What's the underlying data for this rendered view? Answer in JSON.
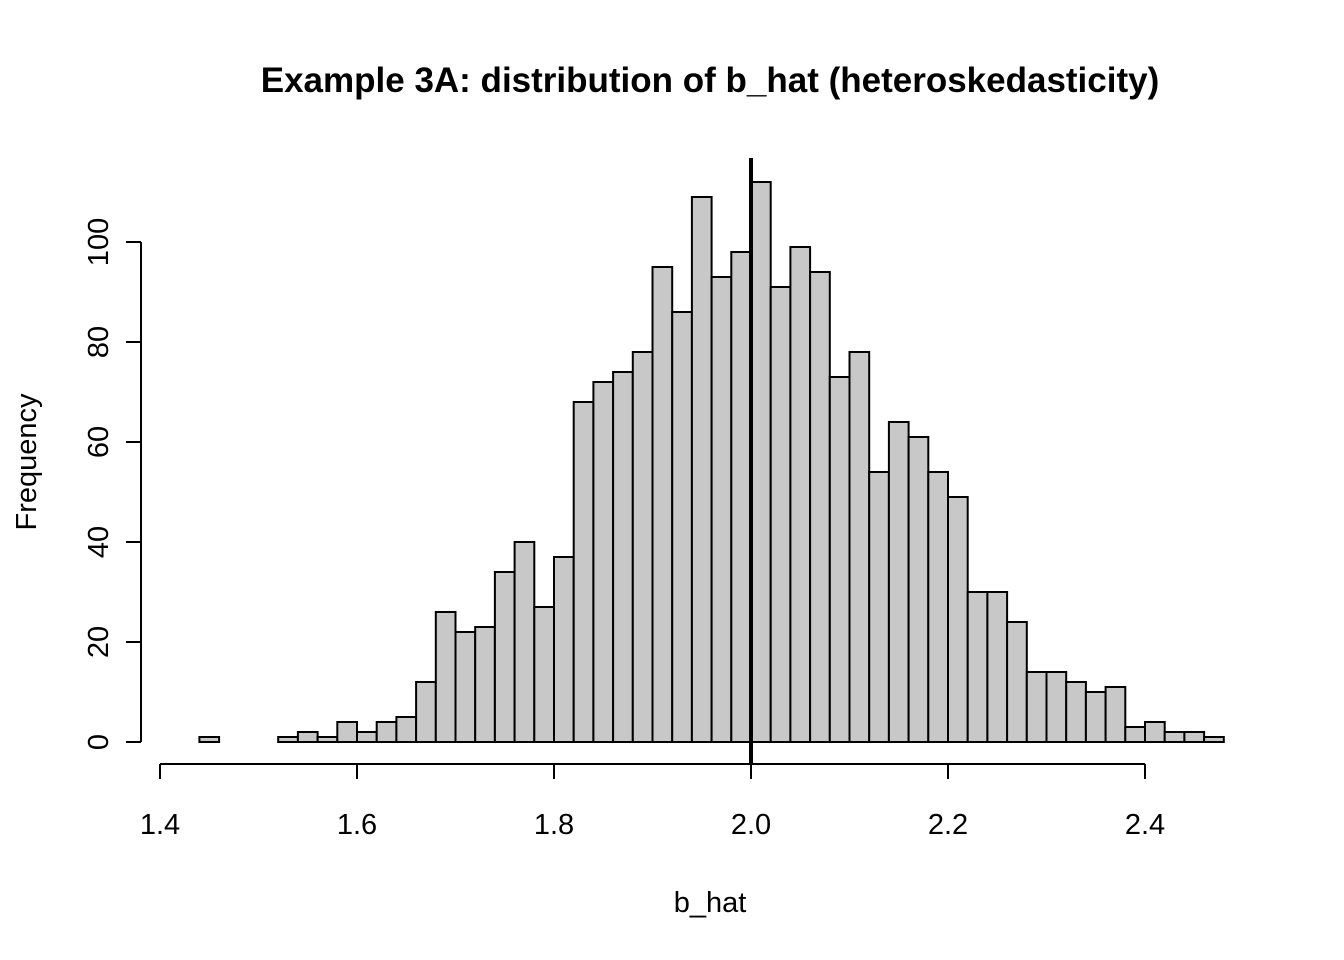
{
  "chart_data": {
    "type": "bar",
    "title": "Example 3A: distribution of b_hat (heteroskedasticity)",
    "xlabel": "b_hat",
    "ylabel": "Frequency",
    "bin_width": 0.02,
    "bin_start": 1.44,
    "values": [
      1,
      0,
      0,
      0,
      1,
      2,
      1,
      4,
      2,
      4,
      5,
      12,
      26,
      22,
      23,
      34,
      40,
      27,
      37,
      68,
      72,
      74,
      78,
      95,
      86,
      109,
      93,
      98,
      112,
      91,
      99,
      94,
      73,
      78,
      54,
      64,
      61,
      54,
      49,
      30,
      30,
      24,
      14,
      14,
      12,
      10,
      11,
      3,
      4,
      2,
      2,
      1
    ],
    "xlim": [
      1.4,
      2.48
    ],
    "ylim": [
      0,
      112
    ],
    "xticks": [
      1.4,
      1.6,
      1.8,
      2.0,
      2.2,
      2.4
    ],
    "xtick_labels": [
      "1.4",
      "1.6",
      "1.8",
      "2.0",
      "2.2",
      "2.4"
    ],
    "yticks": [
      0,
      20,
      40,
      60,
      80,
      100
    ],
    "ytick_labels": [
      "0",
      "20",
      "40",
      "60",
      "80",
      "100"
    ],
    "reference_line_x": 2.0,
    "bar_fill": "#c8c8c8",
    "bar_stroke": "#000000",
    "grid": false,
    "legend": "none"
  }
}
